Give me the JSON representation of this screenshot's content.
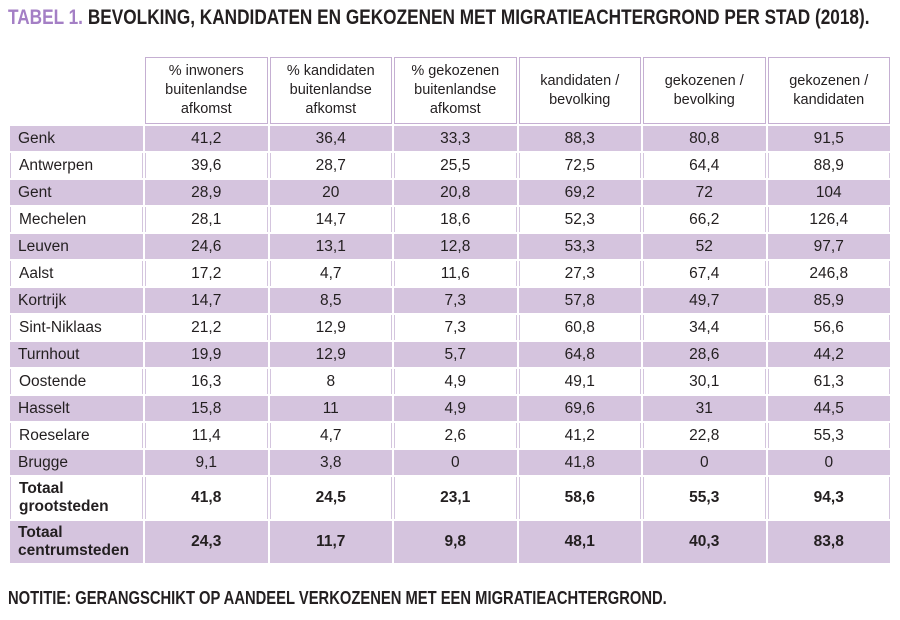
{
  "title": {
    "label": "TABEL 1.",
    "text": "BEVOLKING, KANDIDATEN EN GEKOZENEN MET MIGRATIEACHTERGROND PER STAD (2018)."
  },
  "note": "NOTITIE: GERANGSCHIKT OP AANDEEL VERKOZENEN MET EEN MIGRATIEACHTERGROND.",
  "colors": {
    "accent_purple": "#a47fc5",
    "row_shade": "#d5c4de",
    "header_border": "#c5afd2",
    "text_dark": "#231f20"
  },
  "table": {
    "columns": [
      "% inwoners buitenlandse afkomst",
      "% kandidaten buitenlandse afkomst",
      "% gekozenen buitenlandse afkomst",
      "kandidaten / bevolking",
      "gekozenen / bevolking",
      "gekozenen / kandidaten"
    ],
    "rows": [
      {
        "label": "Genk",
        "values": [
          "41,2",
          "36,4",
          "33,3",
          "88,3",
          "80,8",
          "91,5"
        ],
        "shaded": true,
        "total": false
      },
      {
        "label": "Antwerpen",
        "values": [
          "39,6",
          "28,7",
          "25,5",
          "72,5",
          "64,4",
          "88,9"
        ],
        "shaded": false,
        "total": false
      },
      {
        "label": "Gent",
        "values": [
          "28,9",
          "20",
          "20,8",
          "69,2",
          "72",
          "104"
        ],
        "shaded": true,
        "total": false
      },
      {
        "label": "Mechelen",
        "values": [
          "28,1",
          "14,7",
          "18,6",
          "52,3",
          "66,2",
          "126,4"
        ],
        "shaded": false,
        "total": false
      },
      {
        "label": "Leuven",
        "values": [
          "24,6",
          "13,1",
          "12,8",
          "53,3",
          "52",
          "97,7"
        ],
        "shaded": true,
        "total": false
      },
      {
        "label": "Aalst",
        "values": [
          "17,2",
          "4,7",
          "11,6",
          "27,3",
          "67,4",
          "246,8"
        ],
        "shaded": false,
        "total": false
      },
      {
        "label": "Kortrijk",
        "values": [
          "14,7",
          "8,5",
          "7,3",
          "57,8",
          "49,7",
          "85,9"
        ],
        "shaded": true,
        "total": false
      },
      {
        "label": "Sint-Niklaas",
        "values": [
          "21,2",
          "12,9",
          "7,3",
          "60,8",
          "34,4",
          "56,6"
        ],
        "shaded": false,
        "total": false
      },
      {
        "label": "Turnhout",
        "values": [
          "19,9",
          "12,9",
          "5,7",
          "64,8",
          "28,6",
          "44,2"
        ],
        "shaded": true,
        "total": false
      },
      {
        "label": "Oostende",
        "values": [
          "16,3",
          "8",
          "4,9",
          "49,1",
          "30,1",
          "61,3"
        ],
        "shaded": false,
        "total": false
      },
      {
        "label": "Hasselt",
        "values": [
          "15,8",
          "11",
          "4,9",
          "69,6",
          "31",
          "44,5"
        ],
        "shaded": true,
        "total": false
      },
      {
        "label": "Roeselare",
        "values": [
          "11,4",
          "4,7",
          "2,6",
          "41,2",
          "22,8",
          "55,3"
        ],
        "shaded": false,
        "total": false
      },
      {
        "label": "Brugge",
        "values": [
          "9,1",
          "3,8",
          "0",
          "41,8",
          "0",
          "0"
        ],
        "shaded": true,
        "total": false
      },
      {
        "label": "Totaal grootsteden",
        "values": [
          "41,8",
          "24,5",
          "23,1",
          "58,6",
          "55,3",
          "94,3"
        ],
        "shaded": false,
        "total": true
      },
      {
        "label": "Totaal centrumsteden",
        "values": [
          "24,3",
          "11,7",
          "9,8",
          "48,1",
          "40,3",
          "83,8"
        ],
        "shaded": true,
        "total": true
      }
    ]
  },
  "chart_data": {
    "type": "table",
    "title": "TABEL 1. BEVOLKING, KANDIDATEN EN GEKOZENEN MET MIGRATIEACHTERGROND PER STAD (2018).",
    "note": "NOTITIE: GERANGSCHIKT OP AANDEEL VERKOZENEN MET EEN MIGRATIEACHTERGROND.",
    "columns": [
      "% inwoners buitenlandse afkomst",
      "% kandidaten buitenlandse afkomst",
      "% gekozenen buitenlandse afkomst",
      "kandidaten / bevolking",
      "gekozenen / bevolking",
      "gekozenen / kandidaten"
    ],
    "rows": [
      {
        "stad": "Genk",
        "values": [
          41.2,
          36.4,
          33.3,
          88.3,
          80.8,
          91.5
        ]
      },
      {
        "stad": "Antwerpen",
        "values": [
          39.6,
          28.7,
          25.5,
          72.5,
          64.4,
          88.9
        ]
      },
      {
        "stad": "Gent",
        "values": [
          28.9,
          20,
          20.8,
          69.2,
          72,
          104
        ]
      },
      {
        "stad": "Mechelen",
        "values": [
          28.1,
          14.7,
          18.6,
          52.3,
          66.2,
          126.4
        ]
      },
      {
        "stad": "Leuven",
        "values": [
          24.6,
          13.1,
          12.8,
          53.3,
          52,
          97.7
        ]
      },
      {
        "stad": "Aalst",
        "values": [
          17.2,
          4.7,
          11.6,
          27.3,
          67.4,
          246.8
        ]
      },
      {
        "stad": "Kortrijk",
        "values": [
          14.7,
          8.5,
          7.3,
          57.8,
          49.7,
          85.9
        ]
      },
      {
        "stad": "Sint-Niklaas",
        "values": [
          21.2,
          12.9,
          7.3,
          60.8,
          34.4,
          56.6
        ]
      },
      {
        "stad": "Turnhout",
        "values": [
          19.9,
          12.9,
          5.7,
          64.8,
          28.6,
          44.2
        ]
      },
      {
        "stad": "Oostende",
        "values": [
          16.3,
          8,
          4.9,
          49.1,
          30.1,
          61.3
        ]
      },
      {
        "stad": "Hasselt",
        "values": [
          15.8,
          11,
          4.9,
          69.6,
          31,
          44.5
        ]
      },
      {
        "stad": "Roeselare",
        "values": [
          11.4,
          4.7,
          2.6,
          41.2,
          22.8,
          55.3
        ]
      },
      {
        "stad": "Brugge",
        "values": [
          9.1,
          3.8,
          0,
          41.8,
          0,
          0
        ]
      },
      {
        "stad": "Totaal grootsteden",
        "values": [
          41.8,
          24.5,
          23.1,
          58.6,
          55.3,
          94.3
        ]
      },
      {
        "stad": "Totaal centrumsteden",
        "values": [
          24.3,
          11.7,
          9.8,
          48.1,
          40.3,
          83.8
        ]
      }
    ]
  }
}
